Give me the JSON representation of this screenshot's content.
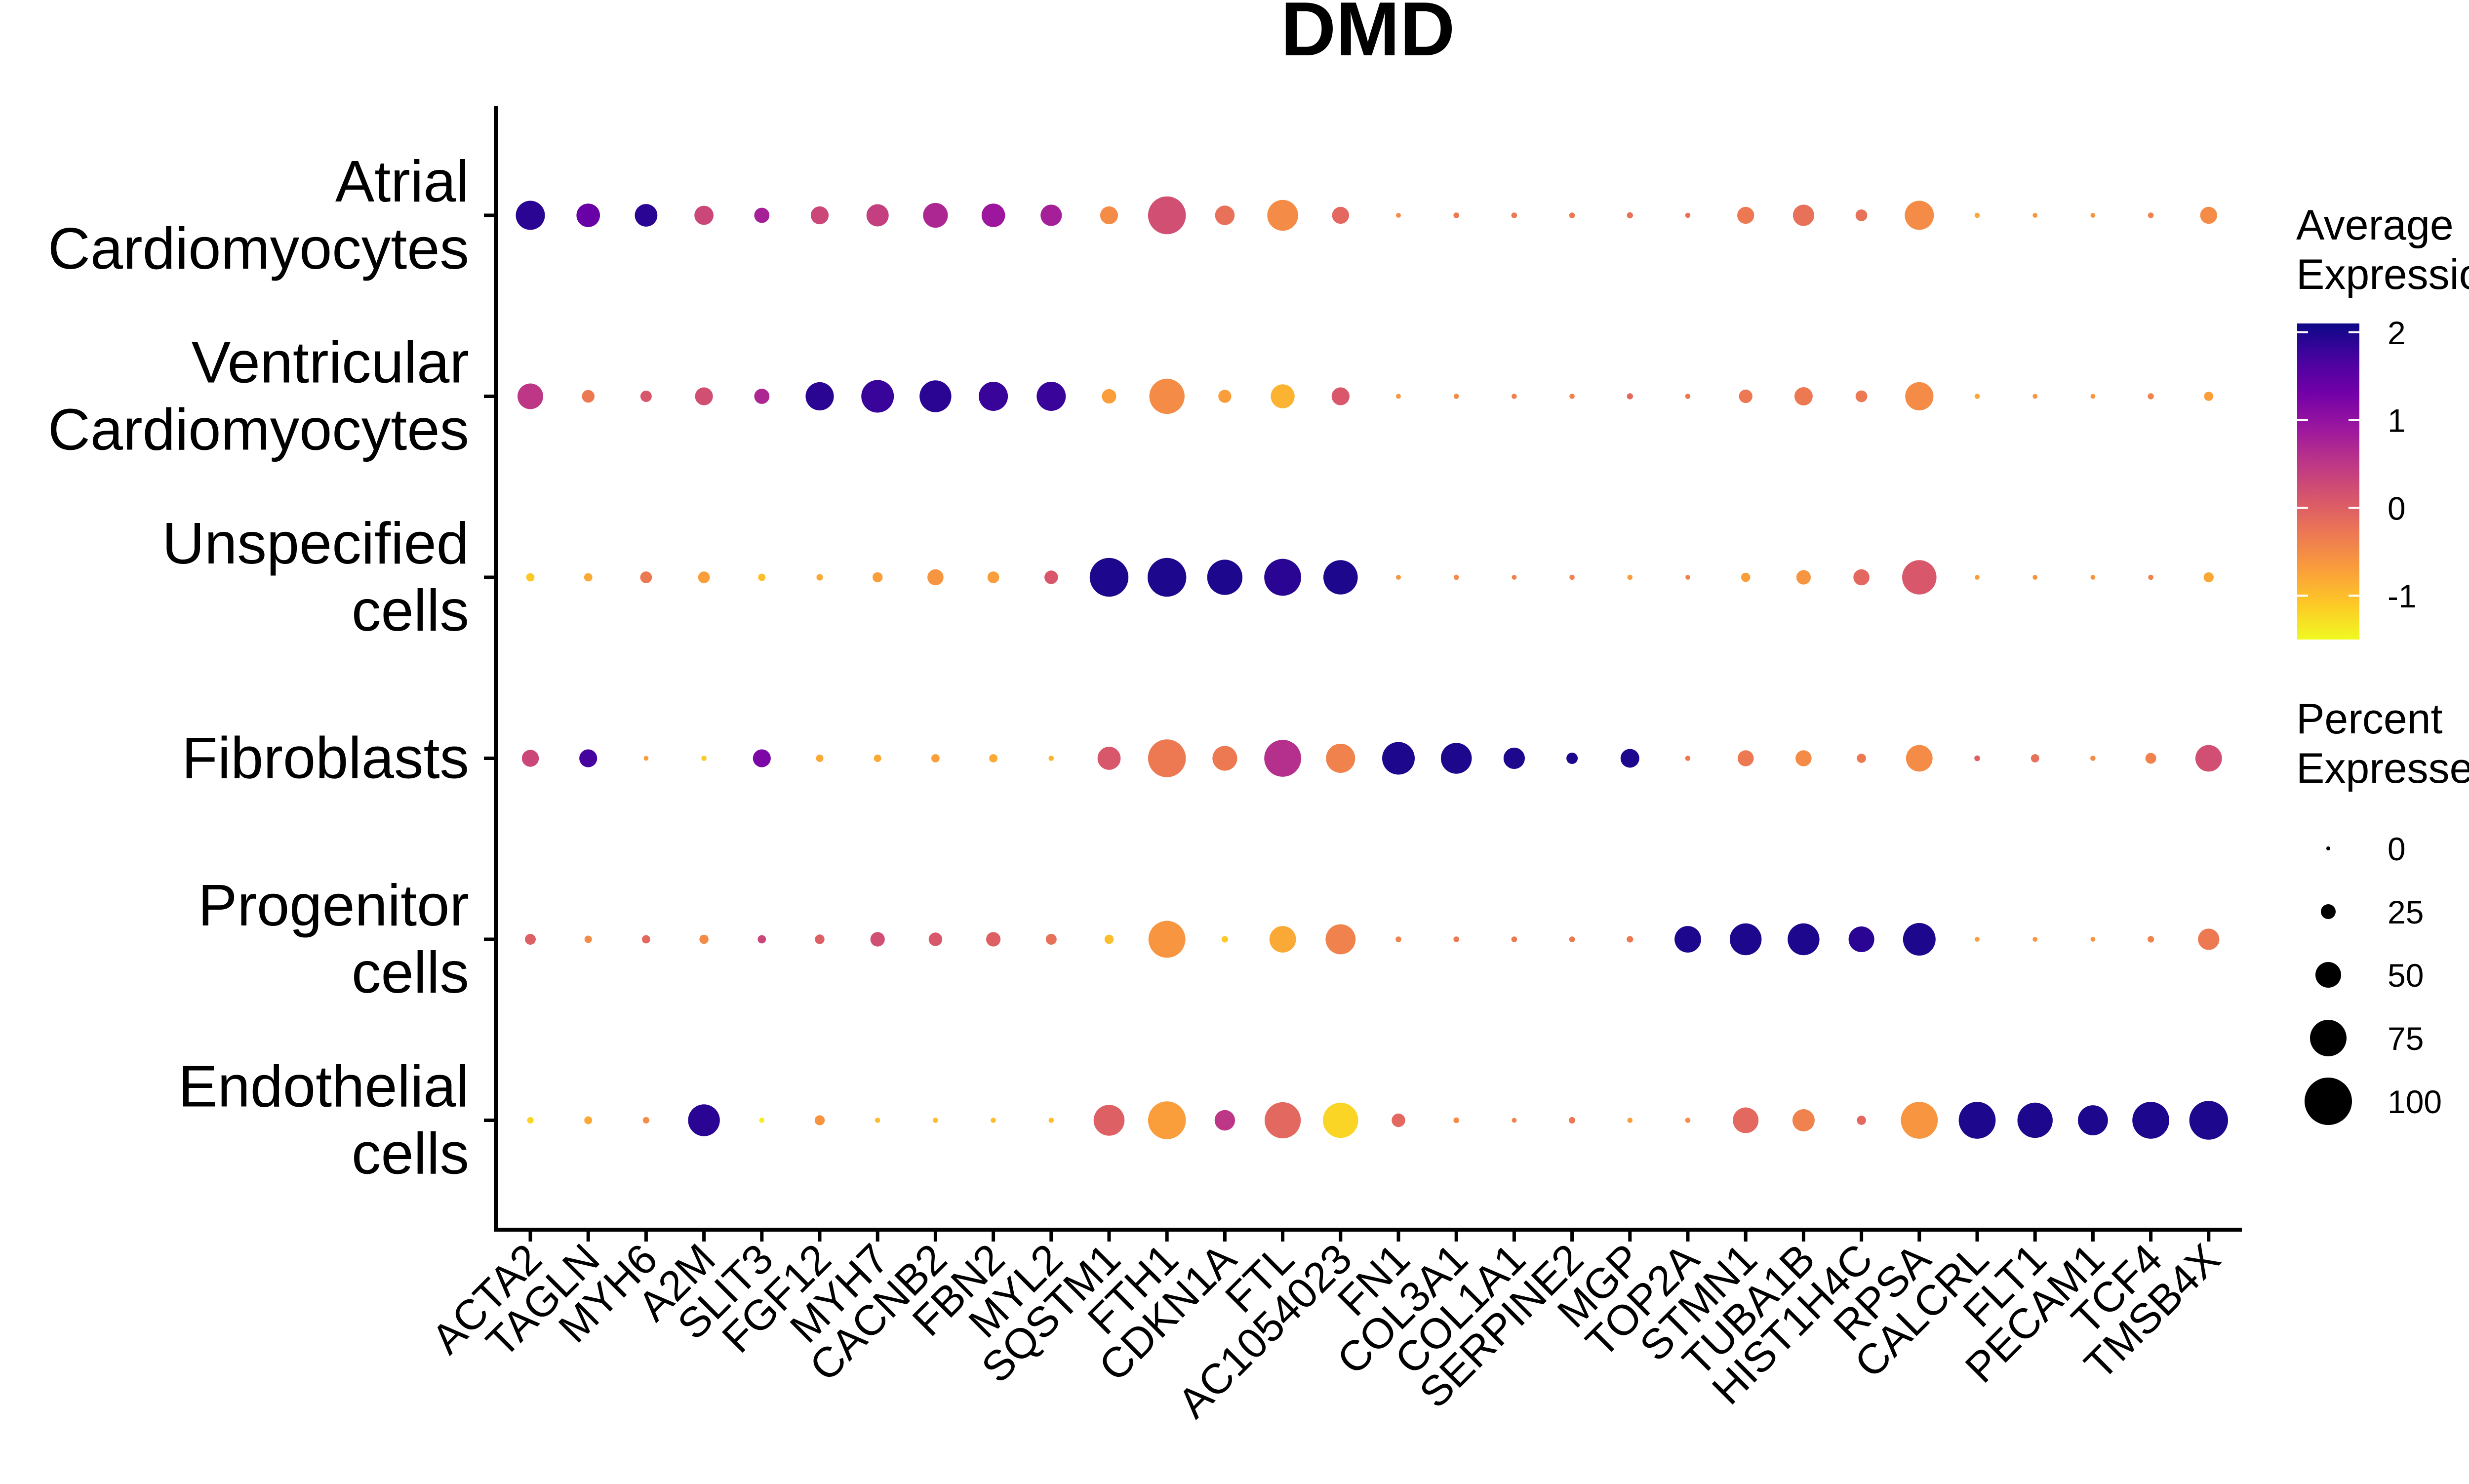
{
  "chart_data": {
    "type": "dot",
    "title": "DMD",
    "xlabel": "",
    "ylabel": "",
    "genes": [
      "ACTA2",
      "TAGLN",
      "MYH6",
      "A2M",
      "SLIT3",
      "FGF12",
      "MYH7",
      "CACNB2",
      "FBN2",
      "MYL2",
      "SQSTM1",
      "FTH1",
      "CDKN1A",
      "FTL",
      "AC1054023",
      "FN1",
      "COL3A1",
      "COL1A1",
      "SERPINE2",
      "MGP",
      "TOP2A",
      "STMN1",
      "TUBA1B",
      "HIST1H4C",
      "RPSA",
      "CALCRL",
      "FLT1",
      "PECAM1",
      "TCF4",
      "TMSB4X"
    ],
    "cell_types": [
      {
        "id": "atrial",
        "lines": [
          "Atrial",
          "Cardiomyocytes"
        ]
      },
      {
        "id": "ventricular",
        "lines": [
          "Ventricular",
          "Cardiomyocytes"
        ]
      },
      {
        "id": "unspecified",
        "lines": [
          "Unspecified",
          "cells"
        ]
      },
      {
        "id": "fibroblasts",
        "lines": [
          "Fibroblasts"
        ]
      },
      {
        "id": "progenitor",
        "lines": [
          "Progenitor",
          "cells"
        ]
      },
      {
        "id": "endothelial",
        "lines": [
          "Endothelial",
          "cells"
        ]
      }
    ],
    "avg_expression": [
      [
        1.9,
        1.4,
        1.9,
        0.3,
        0.8,
        0.3,
        0.4,
        0.7,
        0.9,
        0.8,
        -0.5,
        0.2,
        -0.2,
        -0.5,
        -0.1,
        -0.5,
        -0.3,
        -0.3,
        -0.3,
        -0.2,
        -0.2,
        -0.3,
        -0.2,
        -0.2,
        -0.5,
        -0.8,
        -0.6,
        -0.6,
        -0.4,
        -0.5
      ],
      [
        0.5,
        -0.3,
        0.1,
        0.2,
        0.7,
        1.9,
        1.8,
        1.9,
        1.8,
        1.8,
        -0.7,
        -0.5,
        -0.7,
        -0.9,
        0.1,
        -0.6,
        -0.5,
        -0.4,
        -0.4,
        -0.1,
        -0.3,
        -0.3,
        -0.3,
        -0.3,
        -0.5,
        -0.8,
        -0.6,
        -0.6,
        -0.4,
        -0.7
      ],
      [
        -1.1,
        -0.8,
        -0.3,
        -0.7,
        -1.0,
        -0.8,
        -0.7,
        -0.6,
        -0.7,
        0.1,
        2.0,
        2.0,
        2.0,
        1.9,
        2.0,
        -0.6,
        -0.5,
        -0.4,
        -0.4,
        -0.7,
        -0.4,
        -0.7,
        -0.6,
        -0.1,
        0.1,
        -0.7,
        -0.6,
        -0.6,
        -0.4,
        -0.8
      ],
      [
        0.3,
        1.7,
        -0.7,
        -1.1,
        1.2,
        -0.8,
        -0.8,
        -0.7,
        -0.8,
        -0.9,
        0.1,
        -0.3,
        -0.3,
        0.6,
        -0.4,
        2.0,
        2.0,
        2.0,
        2.0,
        2.0,
        -0.3,
        -0.3,
        -0.5,
        -0.3,
        -0.5,
        0.0,
        -0.2,
        -0.5,
        -0.4,
        0.2
      ],
      [
        0.0,
        -0.5,
        -0.1,
        -0.5,
        0.3,
        0.0,
        0.2,
        0.1,
        0.0,
        -0.2,
        -1.0,
        -0.6,
        -1.1,
        -0.8,
        -0.4,
        -0.4,
        -0.3,
        -0.3,
        -0.3,
        -0.3,
        2.0,
        2.0,
        2.0,
        1.9,
        2.0,
        -0.7,
        -0.6,
        -0.6,
        -0.4,
        -0.3
      ],
      [
        -1.2,
        -0.8,
        -0.5,
        1.9,
        -1.4,
        -0.6,
        -1.0,
        -1.0,
        -1.0,
        -1.0,
        0.0,
        -0.7,
        0.5,
        -0.1,
        -1.2,
        -0.1,
        -0.5,
        -0.4,
        -0.3,
        -0.7,
        -0.5,
        -0.1,
        -0.4,
        -0.1,
        -0.6,
        2.0,
        2.0,
        2.0,
        2.0,
        2.0
      ]
    ],
    "pct_expressed": [
      [
        58,
        45,
        43,
        35,
        26,
        32,
        42,
        48,
        45,
        40,
        32,
        78,
        36,
        62,
        30,
        2,
        4,
        4,
        4,
        5,
        3,
        30,
        40,
        18,
        58,
        3,
        2,
        2,
        4,
        30
      ],
      [
        50,
        20,
        17,
        32,
        26,
        56,
        66,
        64,
        58,
        58,
        24,
        72,
        21,
        46,
        32,
        2,
        3,
        3,
        3,
        5,
        3,
        22,
        33,
        18,
        56,
        3,
        2,
        2,
        5,
        12
      ],
      [
        10,
        10,
        18,
        18,
        8,
        6,
        14,
        28,
        18,
        22,
        80,
        80,
        72,
        76,
        70,
        2,
        3,
        2,
        3,
        3,
        2,
        12,
        24,
        28,
        70,
        2,
        2,
        2,
        3,
        14
      ],
      [
        30,
        32,
        2,
        3,
        32,
        8,
        8,
        10,
        10,
        3,
        44,
        78,
        48,
        76,
        58,
        66,
        62,
        40,
        17,
        34,
        3,
        28,
        28,
        12,
        52,
        4,
        10,
        3,
        16,
        52
      ],
      [
        16,
        8,
        10,
        12,
        10,
        13,
        24,
        22,
        24,
        16,
        12,
        76,
        6,
        52,
        60,
        4,
        4,
        4,
        4,
        6,
        52,
        64,
        64,
        50,
        66,
        2,
        2,
        2,
        6,
        40
      ],
      [
        6,
        9,
        6,
        64,
        3,
        14,
        3,
        3,
        3,
        3,
        62,
        78,
        38,
        74,
        72,
        22,
        4,
        2,
        6,
        3,
        3,
        50,
        42,
        12,
        76,
        76,
        72,
        60,
        76,
        80
      ]
    ],
    "legend": {
      "color_title_lines": [
        "Average",
        "Expression"
      ],
      "color_ticks": [
        "2",
        "1",
        "0",
        "-1"
      ],
      "color_tick_values": [
        2,
        1,
        0,
        -1
      ],
      "color_range": [
        -1.5,
        2.1
      ],
      "size_title_lines": [
        "Percent",
        "Expressed"
      ],
      "size_ticks": [
        "0",
        "25",
        "50",
        "75",
        "100"
      ],
      "size_tick_values": [
        0,
        25,
        50,
        75,
        100
      ]
    },
    "colors": {
      "plasma": [
        "#0D0887",
        "#47039F",
        "#7301A8",
        "#9C179E",
        "#BD3786",
        "#D8576B",
        "#ED7953",
        "#FA9E3B",
        "#FDC926",
        "#F0F921"
      ]
    }
  }
}
